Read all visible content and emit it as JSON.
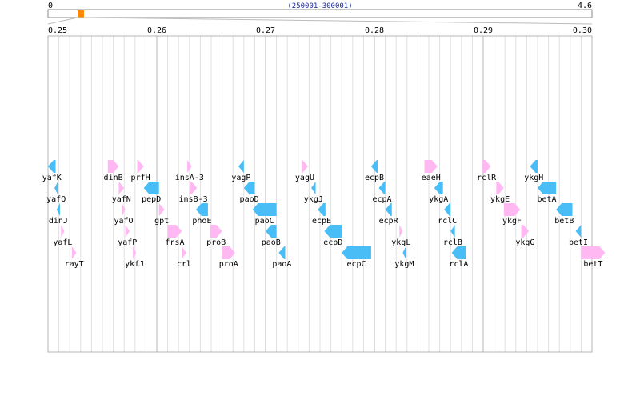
{
  "overview": {
    "start_label": "0",
    "end_label": "4.6",
    "range_label": "(250001-300001)",
    "genome_length_mb": 4.6,
    "window_start_mb": 0.25,
    "window_end_mb": 0.3,
    "marker_color": "#ff8800"
  },
  "axis": {
    "ticks": [
      "0.25",
      "0.26",
      "0.27",
      "0.28",
      "0.29",
      "0.30"
    ],
    "tick_values": [
      0.25,
      0.26,
      0.27,
      0.28,
      0.29,
      0.3
    ]
  },
  "colors": {
    "forward": "#ffb8f2",
    "reverse": "#49bdf5",
    "grid_major": "#b4b4b4",
    "grid_minor": "#e0e0e0"
  },
  "genes": [
    {
      "name": "yafK",
      "start": 0.25,
      "end": 0.2507,
      "strand": "-",
      "row": 0
    },
    {
      "name": "yafQ",
      "start": 0.2506,
      "end": 0.2509,
      "strand": "-",
      "row": 1
    },
    {
      "name": "dinJ",
      "start": 0.2508,
      "end": 0.2511,
      "strand": "-",
      "row": 2
    },
    {
      "name": "yafL",
      "start": 0.2512,
      "end": 0.2515,
      "strand": "+",
      "row": 3
    },
    {
      "name": "rayT",
      "start": 0.2522,
      "end": 0.2526,
      "strand": "+",
      "row": 4
    },
    {
      "name": "dinB",
      "start": 0.2555,
      "end": 0.2565,
      "strand": "+",
      "row": 0
    },
    {
      "name": "yafN",
      "start": 0.2565,
      "end": 0.257,
      "strand": "+",
      "row": 1
    },
    {
      "name": "yafO",
      "start": 0.2568,
      "end": 0.2571,
      "strand": "+",
      "row": 2
    },
    {
      "name": "yafP",
      "start": 0.2571,
      "end": 0.2575,
      "strand": "+",
      "row": 3
    },
    {
      "name": "ykfJ",
      "start": 0.2578,
      "end": 0.2581,
      "strand": "+",
      "row": 4
    },
    {
      "name": "prfH",
      "start": 0.2582,
      "end": 0.2588,
      "strand": "+",
      "row": 0
    },
    {
      "name": "pepD",
      "start": 0.2588,
      "end": 0.2602,
      "strand": "-",
      "row": 1
    },
    {
      "name": "gpt",
      "start": 0.2602,
      "end": 0.2607,
      "strand": "+",
      "row": 2
    },
    {
      "name": "frsA",
      "start": 0.261,
      "end": 0.2623,
      "strand": "+",
      "row": 3
    },
    {
      "name": "crl",
      "start": 0.2623,
      "end": 0.2627,
      "strand": "+",
      "row": 4
    },
    {
      "name": "insA-3",
      "start": 0.2628,
      "end": 0.2632,
      "strand": "+",
      "row": 0
    },
    {
      "name": "insB-3",
      "start": 0.263,
      "end": 0.2637,
      "strand": "+",
      "row": 1
    },
    {
      "name": "phoE",
      "start": 0.2636,
      "end": 0.2647,
      "strand": "-",
      "row": 2
    },
    {
      "name": "proB",
      "start": 0.2649,
      "end": 0.266,
      "strand": "+",
      "row": 3
    },
    {
      "name": "proA",
      "start": 0.266,
      "end": 0.2672,
      "strand": "+",
      "row": 4
    },
    {
      "name": "yagP",
      "start": 0.2675,
      "end": 0.268,
      "strand": "-",
      "row": 0
    },
    {
      "name": "paoD",
      "start": 0.268,
      "end": 0.269,
      "strand": "-",
      "row": 1
    },
    {
      "name": "paoC",
      "start": 0.2688,
      "end": 0.271,
      "strand": "-",
      "row": 2
    },
    {
      "name": "paoB",
      "start": 0.27,
      "end": 0.271,
      "strand": "-",
      "row": 3
    },
    {
      "name": "paoA",
      "start": 0.2712,
      "end": 0.2718,
      "strand": "-",
      "row": 4
    },
    {
      "name": "yagU",
      "start": 0.2733,
      "end": 0.2739,
      "strand": "+",
      "row": 0
    },
    {
      "name": "ykgJ",
      "start": 0.2742,
      "end": 0.2746,
      "strand": "-",
      "row": 1
    },
    {
      "name": "ecpE",
      "start": 0.2748,
      "end": 0.2755,
      "strand": "-",
      "row": 2
    },
    {
      "name": "ecpD",
      "start": 0.2754,
      "end": 0.277,
      "strand": "-",
      "row": 3
    },
    {
      "name": "ecpC",
      "start": 0.277,
      "end": 0.2797,
      "strand": "-",
      "row": 4
    },
    {
      "name": "ecpB",
      "start": 0.2797,
      "end": 0.2803,
      "strand": "-",
      "row": 0
    },
    {
      "name": "ecpA",
      "start": 0.2804,
      "end": 0.281,
      "strand": "-",
      "row": 1
    },
    {
      "name": "ecpR",
      "start": 0.281,
      "end": 0.2816,
      "strand": "-",
      "row": 2
    },
    {
      "name": "ykgL",
      "start": 0.2823,
      "end": 0.2826,
      "strand": "+",
      "row": 3
    },
    {
      "name": "ykgM",
      "start": 0.2826,
      "end": 0.2829,
      "strand": "-",
      "row": 4
    },
    {
      "name": "eaeH",
      "start": 0.2846,
      "end": 0.2858,
      "strand": "+",
      "row": 0
    },
    {
      "name": "ykgA",
      "start": 0.2855,
      "end": 0.2863,
      "strand": "-",
      "row": 1
    },
    {
      "name": "rclC",
      "start": 0.2864,
      "end": 0.287,
      "strand": "-",
      "row": 2
    },
    {
      "name": "rclB",
      "start": 0.287,
      "end": 0.2874,
      "strand": "-",
      "row": 3
    },
    {
      "name": "rclA",
      "start": 0.2871,
      "end": 0.2884,
      "strand": "-",
      "row": 4
    },
    {
      "name": "rclR",
      "start": 0.2899,
      "end": 0.2907,
      "strand": "+",
      "row": 0
    },
    {
      "name": "ykgE",
      "start": 0.2912,
      "end": 0.2919,
      "strand": "+",
      "row": 1
    },
    {
      "name": "ykgF",
      "start": 0.2919,
      "end": 0.2934,
      "strand": "+",
      "row": 2
    },
    {
      "name": "ykgG",
      "start": 0.2935,
      "end": 0.2942,
      "strand": "+",
      "row": 3
    },
    {
      "name": "ykgH",
      "start": 0.2943,
      "end": 0.295,
      "strand": "-",
      "row": 0
    },
    {
      "name": "betA",
      "start": 0.295,
      "end": 0.2967,
      "strand": "-",
      "row": 1
    },
    {
      "name": "betB",
      "start": 0.2967,
      "end": 0.2982,
      "strand": "-",
      "row": 2
    },
    {
      "name": "betI",
      "start": 0.2985,
      "end": 0.299,
      "strand": "-",
      "row": 3
    },
    {
      "name": "betT",
      "start": 0.299,
      "end": 0.3012,
      "strand": "+",
      "row": 4
    }
  ]
}
